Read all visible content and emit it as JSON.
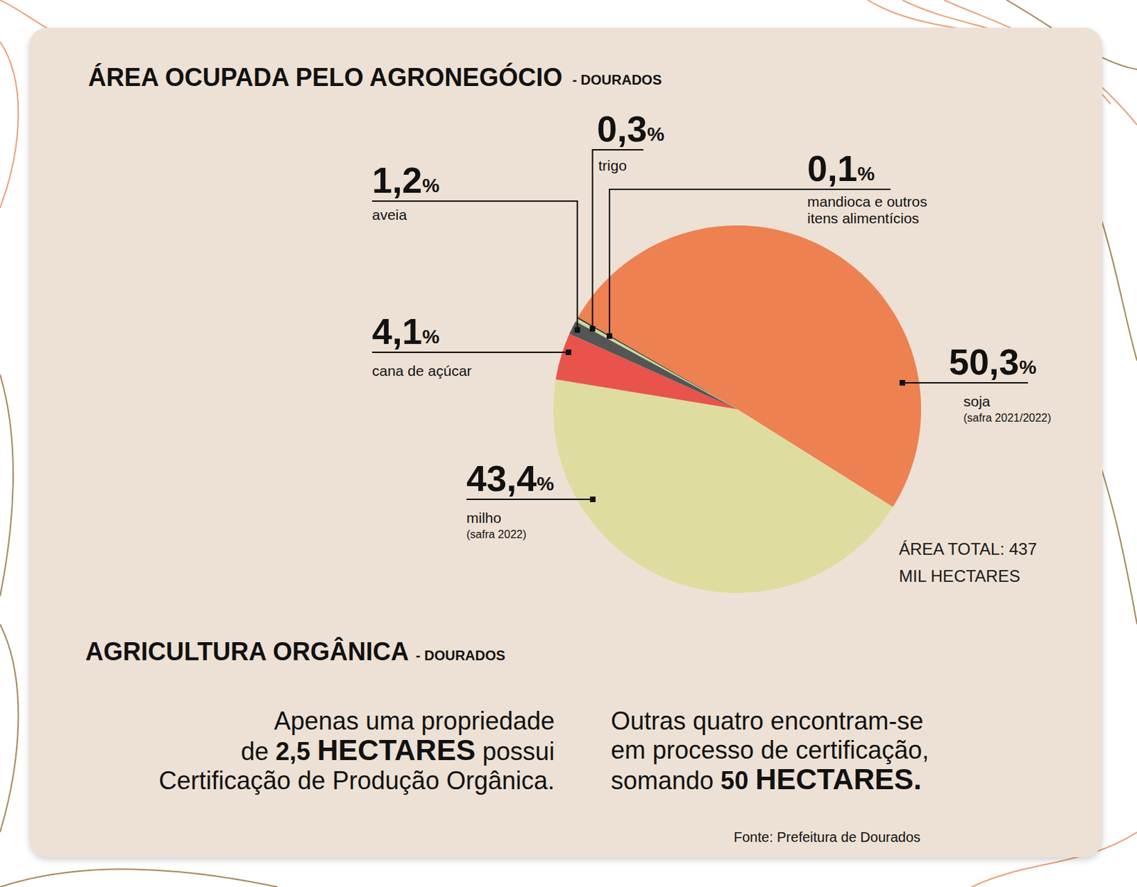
{
  "chart_data": {
    "type": "pie",
    "title": "ÁREA OCUPADA PELO AGRONEGÓCIO",
    "subtitle": "- DOURADOS",
    "categories": [
      "soja",
      "milho",
      "cana de açúcar",
      "aveia",
      "trigo",
      "mandioca e outros itens alimentícios"
    ],
    "notes": [
      "(safra 2021/2022)",
      "(safra 2022)",
      null,
      null,
      null,
      null
    ],
    "values": [
      50.3,
      43.4,
      4.1,
      1.2,
      0.3,
      0.1
    ],
    "value_labels": [
      "50,3%",
      "43,4%",
      "4,1%",
      "1,2%",
      "0,3%",
      "0,1%"
    ],
    "colors": [
      "#ed8151",
      "#dfdc9f",
      "#e8544b",
      "#555555",
      "#c4dba6",
      "#222222"
    ],
    "data_labels": true,
    "annotations": [
      "ÁREA TOTAL: 437 MIL HECTARES"
    ]
  },
  "organic": {
    "title": "AGRICULTURA ORGÂNICA",
    "subtitle": "- DOURADOS",
    "left": [
      [
        "Apenas uma propriedade"
      ],
      [
        "de ",
        {
          "text": "2,5",
          "style": "bold"
        },
        " ",
        {
          "text": "HECTARES",
          "style": "bold-large"
        },
        " possui"
      ],
      [
        "Certificação de Produção Orgânica."
      ]
    ],
    "right": [
      [
        "Outras quatro encontram-se"
      ],
      [
        "em processo de certificação,"
      ],
      [
        "somando ",
        {
          "text": "50",
          "style": "bold"
        },
        " ",
        {
          "text": "HECTARES.",
          "style": "bold-large"
        }
      ]
    ]
  },
  "source": "Fonte: Prefeitura de Dourados"
}
